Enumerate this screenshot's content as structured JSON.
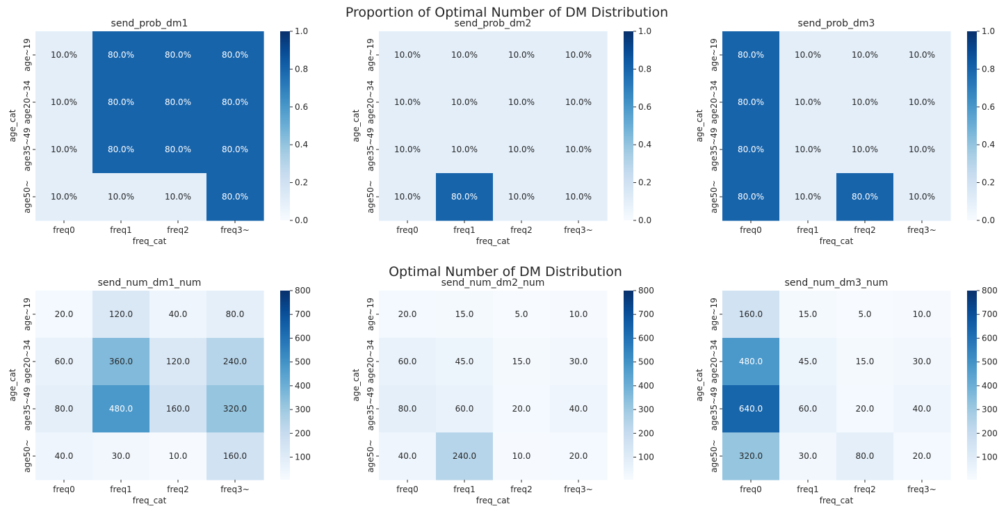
{
  "suptitles": [
    "Proportion of Optimal Number of DM Distribution",
    "Optimal Number of DM Distribution"
  ],
  "chart_data": [
    {
      "type": "heatmap",
      "title": "send_prob_dm1",
      "xlabel": "freq_cat",
      "ylabel": "age_cat",
      "x_categories": [
        "freq0",
        "freq1",
        "freq2",
        "freq3~"
      ],
      "y_categories": [
        "age~19",
        "age20~34",
        "age35~49",
        "age50~"
      ],
      "values": [
        [
          0.1,
          0.8,
          0.8,
          0.8
        ],
        [
          0.1,
          0.8,
          0.8,
          0.8
        ],
        [
          0.1,
          0.8,
          0.8,
          0.8
        ],
        [
          0.1,
          0.1,
          0.1,
          0.8
        ]
      ],
      "labels": [
        [
          "10.0%",
          "80.0%",
          "80.0%",
          "80.0%"
        ],
        [
          "10.0%",
          "80.0%",
          "80.0%",
          "80.0%"
        ],
        [
          "10.0%",
          "80.0%",
          "80.0%",
          "80.0%"
        ],
        [
          "10.0%",
          "10.0%",
          "10.0%",
          "80.0%"
        ]
      ],
      "vmin": 0,
      "vmax": 1,
      "colorbar_ticks": [
        0.0,
        0.2,
        0.4,
        0.6,
        0.8,
        1.0
      ],
      "colorbar_labels": [
        "0.0",
        "0.2",
        "0.4",
        "0.6",
        "0.8",
        "1.0"
      ],
      "colormap": "Blues"
    },
    {
      "type": "heatmap",
      "title": "send_prob_dm2",
      "xlabel": "freq_cat",
      "ylabel": "age_cat",
      "x_categories": [
        "freq0",
        "freq1",
        "freq2",
        "freq3~"
      ],
      "y_categories": [
        "age~19",
        "age20~34",
        "age35~49",
        "age50~"
      ],
      "values": [
        [
          0.1,
          0.1,
          0.1,
          0.1
        ],
        [
          0.1,
          0.1,
          0.1,
          0.1
        ],
        [
          0.1,
          0.1,
          0.1,
          0.1
        ],
        [
          0.1,
          0.8,
          0.1,
          0.1
        ]
      ],
      "labels": [
        [
          "10.0%",
          "10.0%",
          "10.0%",
          "10.0%"
        ],
        [
          "10.0%",
          "10.0%",
          "10.0%",
          "10.0%"
        ],
        [
          "10.0%",
          "10.0%",
          "10.0%",
          "10.0%"
        ],
        [
          "10.0%",
          "80.0%",
          "10.0%",
          "10.0%"
        ]
      ],
      "vmin": 0,
      "vmax": 1,
      "colorbar_ticks": [
        0.0,
        0.2,
        0.4,
        0.6,
        0.8,
        1.0
      ],
      "colorbar_labels": [
        "0.0",
        "0.2",
        "0.4",
        "0.6",
        "0.8",
        "1.0"
      ],
      "colormap": "Blues"
    },
    {
      "type": "heatmap",
      "title": "send_prob_dm3",
      "xlabel": "freq_cat",
      "ylabel": "age_cat",
      "x_categories": [
        "freq0",
        "freq1",
        "freq2",
        "freq3~"
      ],
      "y_categories": [
        "age~19",
        "age20~34",
        "age35~49",
        "age50~"
      ],
      "values": [
        [
          0.8,
          0.1,
          0.1,
          0.1
        ],
        [
          0.8,
          0.1,
          0.1,
          0.1
        ],
        [
          0.8,
          0.1,
          0.1,
          0.1
        ],
        [
          0.8,
          0.1,
          0.8,
          0.1
        ]
      ],
      "labels": [
        [
          "80.0%",
          "10.0%",
          "10.0%",
          "10.0%"
        ],
        [
          "80.0%",
          "10.0%",
          "10.0%",
          "10.0%"
        ],
        [
          "80.0%",
          "10.0%",
          "10.0%",
          "10.0%"
        ],
        [
          "80.0%",
          "10.0%",
          "80.0%",
          "10.0%"
        ]
      ],
      "vmin": 0,
      "vmax": 1,
      "colorbar_ticks": [
        0.0,
        0.2,
        0.4,
        0.6,
        0.8,
        1.0
      ],
      "colorbar_labels": [
        "0.0",
        "0.2",
        "0.4",
        "0.6",
        "0.8",
        "1.0"
      ],
      "colormap": "Blues"
    },
    {
      "type": "heatmap",
      "title": "send_num_dm1_num",
      "xlabel": "freq_cat",
      "ylabel": "age_cat",
      "x_categories": [
        "freq0",
        "freq1",
        "freq2",
        "freq3~"
      ],
      "y_categories": [
        "age~19",
        "age20~34",
        "age35~49",
        "age50~"
      ],
      "values": [
        [
          20,
          120,
          40,
          80
        ],
        [
          60,
          360,
          120,
          240
        ],
        [
          80,
          480,
          160,
          320
        ],
        [
          40,
          30,
          10,
          160
        ]
      ],
      "labels": [
        [
          "20.0",
          "120.0",
          "40.0",
          "80.0"
        ],
        [
          "60.0",
          "360.0",
          "120.0",
          "240.0"
        ],
        [
          "80.0",
          "480.0",
          "160.0",
          "320.0"
        ],
        [
          "40.0",
          "30.0",
          "10.0",
          "160.0"
        ]
      ],
      "vmin": 5,
      "vmax": 800,
      "colorbar_ticks": [
        100,
        200,
        300,
        400,
        500,
        600,
        700,
        800
      ],
      "colorbar_labels": [
        "100",
        "200",
        "300",
        "400",
        "500",
        "600",
        "700",
        "800"
      ],
      "colormap": "Blues"
    },
    {
      "type": "heatmap",
      "title": "send_num_dm2_num",
      "xlabel": "freq_cat",
      "ylabel": "age_cat",
      "x_categories": [
        "freq0",
        "freq1",
        "freq2",
        "freq3~"
      ],
      "y_categories": [
        "age~19",
        "age20~34",
        "age35~49",
        "age50~"
      ],
      "values": [
        [
          20,
          15,
          5,
          10
        ],
        [
          60,
          45,
          15,
          30
        ],
        [
          80,
          60,
          20,
          40
        ],
        [
          40,
          240,
          10,
          20
        ]
      ],
      "labels": [
        [
          "20.0",
          "15.0",
          "5.0",
          "10.0"
        ],
        [
          "60.0",
          "45.0",
          "15.0",
          "30.0"
        ],
        [
          "80.0",
          "60.0",
          "20.0",
          "40.0"
        ],
        [
          "40.0",
          "240.0",
          "10.0",
          "20.0"
        ]
      ],
      "vmin": 5,
      "vmax": 800,
      "colorbar_ticks": [
        100,
        200,
        300,
        400,
        500,
        600,
        700,
        800
      ],
      "colorbar_labels": [
        "100",
        "200",
        "300",
        "400",
        "500",
        "600",
        "700",
        "800"
      ],
      "colormap": "Blues"
    },
    {
      "type": "heatmap",
      "title": "send_num_dm3_num",
      "xlabel": "freq_cat",
      "ylabel": "age_cat",
      "x_categories": [
        "freq0",
        "freq1",
        "freq2",
        "freq3~"
      ],
      "y_categories": [
        "age~19",
        "age20~34",
        "age35~49",
        "age50~"
      ],
      "values": [
        [
          160,
          15,
          5,
          10
        ],
        [
          480,
          45,
          15,
          30
        ],
        [
          640,
          60,
          20,
          40
        ],
        [
          320,
          30,
          80,
          20
        ]
      ],
      "labels": [
        [
          "160.0",
          "15.0",
          "5.0",
          "10.0"
        ],
        [
          "480.0",
          "45.0",
          "15.0",
          "30.0"
        ],
        [
          "640.0",
          "60.0",
          "20.0",
          "40.0"
        ],
        [
          "320.0",
          "30.0",
          "80.0",
          "20.0"
        ]
      ],
      "vmin": 5,
      "vmax": 800,
      "colorbar_ticks": [
        100,
        200,
        300,
        400,
        500,
        600,
        700,
        800
      ],
      "colorbar_labels": [
        "100",
        "200",
        "300",
        "400",
        "500",
        "600",
        "700",
        "800"
      ],
      "colormap": "Blues"
    }
  ]
}
